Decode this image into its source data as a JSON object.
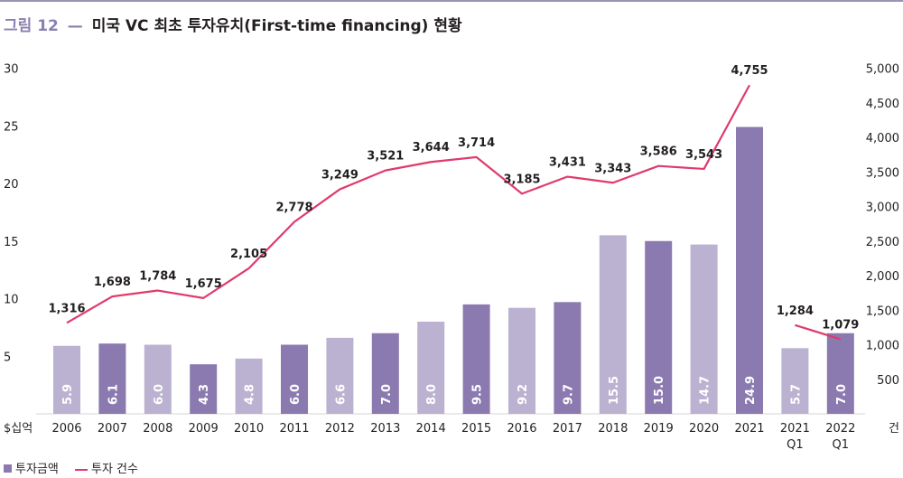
{
  "title": {
    "figure_label": "그림 12",
    "dash": "—",
    "text": "미국 VC 최초 투자유치(First-time financing) 현황"
  },
  "legend": {
    "bar_label": "투자금액",
    "line_label": "투자 건수"
  },
  "colors": {
    "bar_dark": "#8a7aaf",
    "bar_light": "#bab2d0",
    "line": "#e03a6b",
    "text": "#231f20",
    "accent": "#8a7fb0"
  },
  "chart_data": {
    "type": "bar",
    "categories": [
      [
        "2006"
      ],
      [
        "2007"
      ],
      [
        "2008"
      ],
      [
        "2009"
      ],
      [
        "2010"
      ],
      [
        "2011"
      ],
      [
        "2012"
      ],
      [
        "2013"
      ],
      [
        "2014"
      ],
      [
        "2015"
      ],
      [
        "2016"
      ],
      [
        "2017"
      ],
      [
        "2018"
      ],
      [
        "2019"
      ],
      [
        "2020"
      ],
      [
        "2021"
      ],
      [
        "2021",
        "Q1"
      ],
      [
        "2022",
        "Q1"
      ]
    ],
    "series": [
      {
        "name": "투자금액",
        "type": "bar",
        "axis": "left",
        "values": [
          5.9,
          6.1,
          6.0,
          4.3,
          4.8,
          6.0,
          6.6,
          7.0,
          8.0,
          9.5,
          9.2,
          9.7,
          15.5,
          15.0,
          14.7,
          24.9,
          5.7,
          7.0
        ],
        "labels": [
          "5.9",
          "6.1",
          "6.0",
          "4.3",
          "4.8",
          "6.0",
          "6.6",
          "7.0",
          "8.0",
          "9.5",
          "9.2",
          "9.7",
          "15.5",
          "15.0",
          "14.7",
          "24.9",
          "5.7",
          "7.0"
        ],
        "shade": [
          "light",
          "dark",
          "light",
          "dark",
          "light",
          "dark",
          "light",
          "dark",
          "light",
          "dark",
          "light",
          "dark",
          "light",
          "dark",
          "light",
          "dark",
          "light",
          "dark"
        ]
      },
      {
        "name": "투자 건수",
        "type": "line",
        "axis": "right",
        "values": [
          1316,
          1698,
          1784,
          1675,
          2105,
          2778,
          3249,
          3521,
          3644,
          3714,
          3185,
          3431,
          3343,
          3586,
          3543,
          4755,
          1284,
          1079
        ],
        "labels": [
          "1,316",
          "1,698",
          "1,784",
          "1,675",
          "2,105",
          "2,778",
          "3,249",
          "3,521",
          "3,644",
          "3,714",
          "3,185",
          "3,431",
          "3,343",
          "3,586",
          "3,543",
          "4,755",
          "1,284",
          "1,079"
        ],
        "segments": [
          [
            0,
            15
          ],
          [
            16,
            17
          ]
        ]
      }
    ],
    "left_axis": {
      "unit_label": "$십억",
      "ticks": [
        5,
        10,
        15,
        20,
        25,
        30
      ],
      "ylim": [
        0,
        30
      ]
    },
    "right_axis": {
      "unit_label": "건",
      "ticks": [
        "500",
        "1,000",
        "1,500",
        "2,000",
        "2,500",
        "3,000",
        "3,500",
        "4,000",
        "4,500",
        "5,000"
      ],
      "tick_values": [
        500,
        1000,
        1500,
        2000,
        2500,
        3000,
        3500,
        4000,
        4500,
        5000
      ],
      "ylim": [
        0,
        5000
      ]
    },
    "grid": false
  }
}
